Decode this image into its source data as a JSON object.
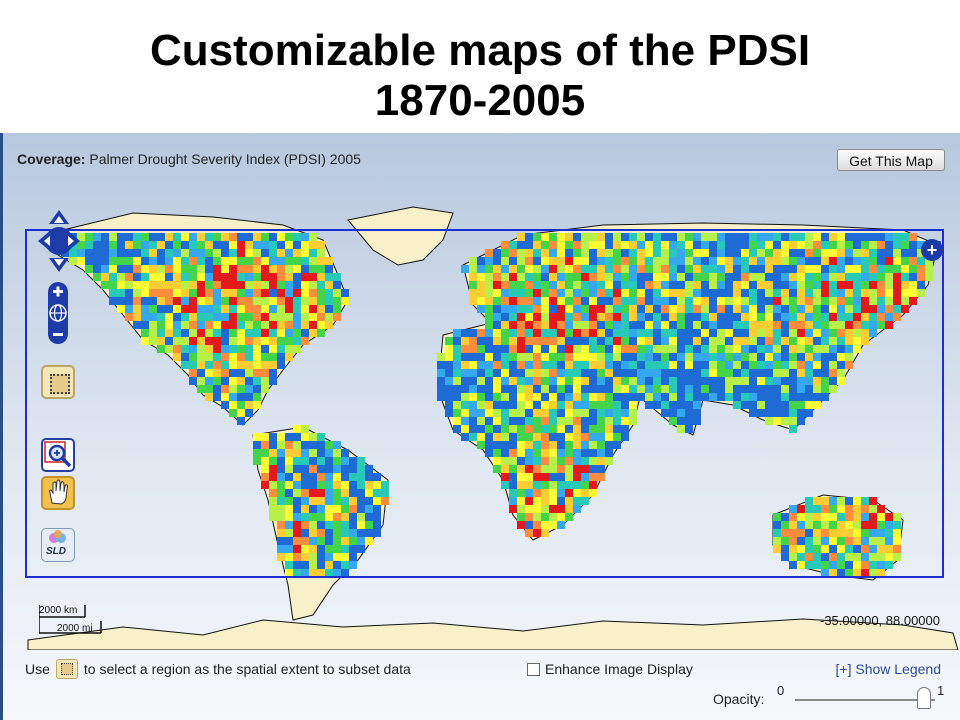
{
  "slide": {
    "title_line1": "Customizable maps of the PDSI",
    "title_line2": "1870-2005"
  },
  "toolbar": {
    "coverage_label": "Coverage:",
    "coverage_value": "Palmer Drought Severity Index (PDSI) 2005",
    "get_map_label": "Get This Map"
  },
  "map": {
    "scale_top": "2000 km",
    "scale_bottom": "2000 mi",
    "coordinates": "-35.00000, 88.00000",
    "expand_symbol": "+",
    "colors": {
      "land": "#f7f0c8",
      "ocean": "#ffffff",
      "frame": "#1d2fd1",
      "dry": "#e31a1c",
      "wet": "#1f6bd6"
    }
  },
  "controls": {
    "pan_icon": "pan-arrows-icon",
    "zoom_in_icon": "zoom-in-icon",
    "zoom_out_icon": "zoom-out-icon",
    "globe_icon": "globe-icon",
    "select_region_icon": "select-region-icon",
    "zoom_box_icon": "zoom-box-icon",
    "hand_icon": "hand-pan-icon",
    "sld_label": "SLD"
  },
  "footer": {
    "hint_use": "Use",
    "hint_rest": "to select a region as the spatial extent to subset data",
    "enhance_label": "Enhance Image Display",
    "legend_link": "[+] Show Legend",
    "opacity_label": "Opacity:",
    "opacity_min": "0",
    "opacity_max": "1",
    "opacity_value": 0.92
  }
}
